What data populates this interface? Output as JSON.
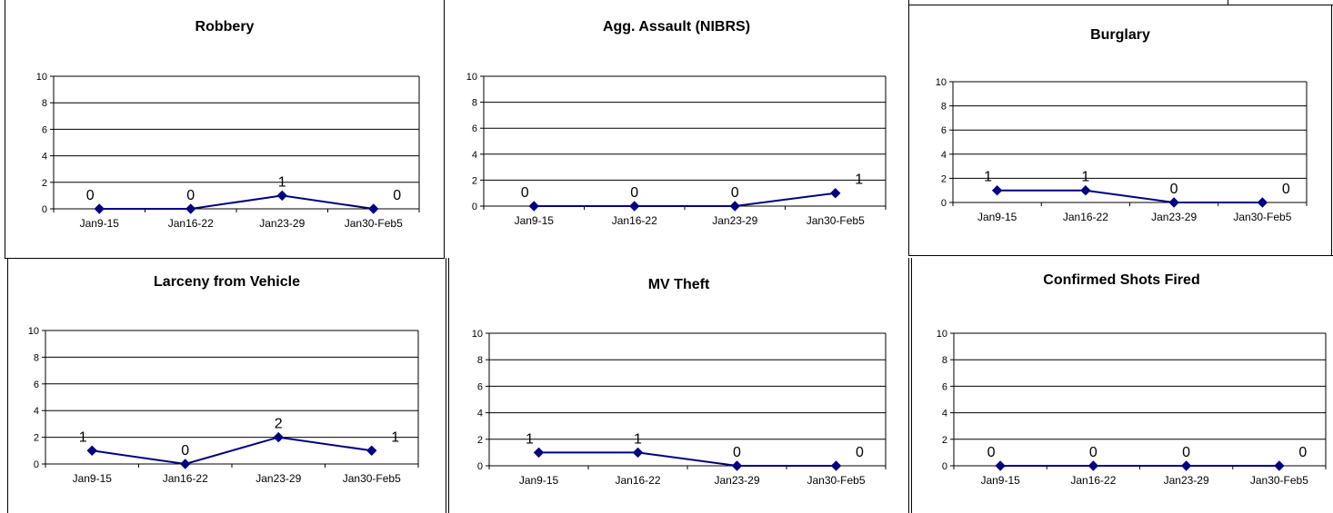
{
  "chart_data": [
    {
      "type": "line",
      "title": "Robbery",
      "categories": [
        "Jan9-15",
        "Jan16-22",
        "Jan23-29",
        "Jan30-Feb5"
      ],
      "values": [
        0,
        0,
        1,
        0
      ],
      "ylim": [
        0,
        10
      ],
      "yticks": [
        0,
        2,
        4,
        6,
        8,
        10
      ],
      "grid": true,
      "line_color": "#000080"
    },
    {
      "type": "line",
      "title": "Agg. Assault (NIBRS)",
      "categories": [
        "Jan9-15",
        "Jan16-22",
        "Jan23-29",
        "Jan30-Feb5"
      ],
      "values": [
        0,
        0,
        0,
        1
      ],
      "ylim": [
        0,
        10
      ],
      "yticks": [
        0,
        2,
        4,
        6,
        8,
        10
      ],
      "grid": true,
      "line_color": "#000080"
    },
    {
      "type": "line",
      "title": "Burglary",
      "categories": [
        "Jan9-15",
        "Jan16-22",
        "Jan23-29",
        "Jan30-Feb5"
      ],
      "values": [
        1,
        1,
        0,
        0
      ],
      "ylim": [
        0,
        10
      ],
      "yticks": [
        0,
        2,
        4,
        6,
        8,
        10
      ],
      "grid": true,
      "line_color": "#000080"
    },
    {
      "type": "line",
      "title": "Larceny from Vehicle",
      "categories": [
        "Jan9-15",
        "Jan16-22",
        "Jan23-29",
        "Jan30-Feb5"
      ],
      "values": [
        1,
        0,
        2,
        1
      ],
      "ylim": [
        0,
        10
      ],
      "yticks": [
        0,
        2,
        4,
        6,
        8,
        10
      ],
      "grid": true,
      "line_color": "#000080"
    },
    {
      "type": "line",
      "title": "MV Theft",
      "categories": [
        "Jan9-15",
        "Jan16-22",
        "Jan23-29",
        "Jan30-Feb5"
      ],
      "values": [
        1,
        1,
        0,
        0
      ],
      "ylim": [
        0,
        10
      ],
      "yticks": [
        0,
        2,
        4,
        6,
        8,
        10
      ],
      "grid": true,
      "line_color": "#000080"
    },
    {
      "type": "line",
      "title": "Confirmed Shots Fired",
      "categories": [
        "Jan9-15",
        "Jan16-22",
        "Jan23-29",
        "Jan30-Feb5"
      ],
      "values": [
        0,
        0,
        0,
        0
      ],
      "ylim": [
        0,
        10
      ],
      "yticks": [
        0,
        2,
        4,
        6,
        8,
        10
      ],
      "grid": true,
      "line_color": "#000080"
    }
  ]
}
